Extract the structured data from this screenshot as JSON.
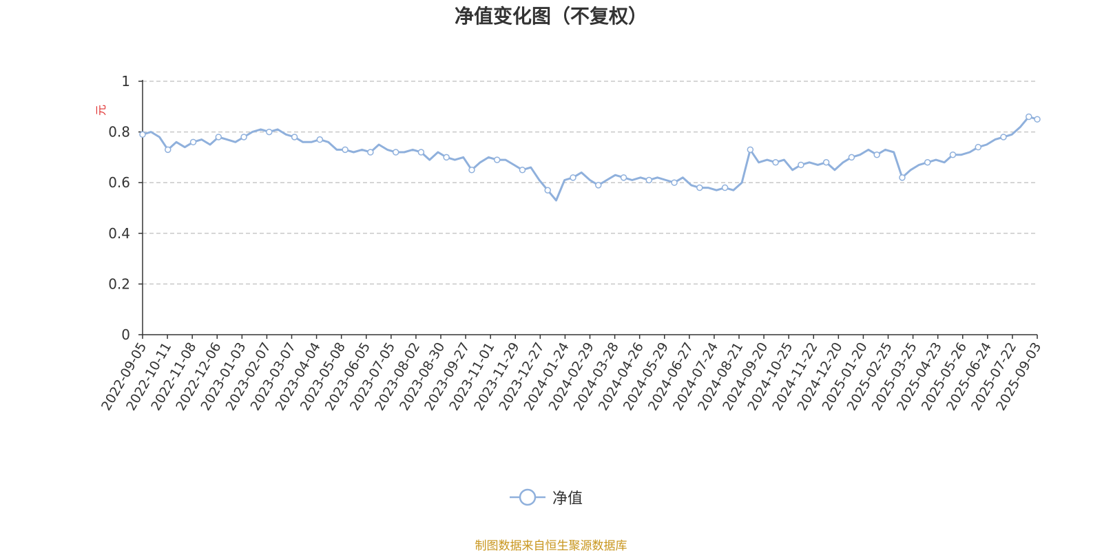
{
  "title": "净值变化图（不复权）",
  "source_note": "制图数据来自恒生聚源数据库",
  "colors": {
    "line": "#8fb0dc",
    "source": "#c8961e",
    "ylabel": "#e03030",
    "axis": "#333333",
    "grid": "#c8c8c8"
  },
  "chart_data": {
    "type": "line",
    "title": "净值变化图（不复权）",
    "ylabel": "元",
    "ylim": [
      0,
      1
    ],
    "yticks": [
      "0",
      "0.2",
      "0.4",
      "0.6",
      "0.8",
      "1"
    ],
    "grid": true,
    "legend_position": "bottom-center",
    "x_ticks": [
      "2022-09-05",
      "2022-10-11",
      "2022-11-08",
      "2022-12-06",
      "2023-01-03",
      "2023-02-07",
      "2023-03-07",
      "2023-04-04",
      "2023-05-08",
      "2023-06-05",
      "2023-07-05",
      "2023-08-02",
      "2023-08-30",
      "2023-09-27",
      "2023-11-01",
      "2023-11-29",
      "2023-12-27",
      "2024-01-24",
      "2024-02-29",
      "2024-03-28",
      "2024-04-26",
      "2024-05-29",
      "2024-06-27",
      "2024-07-24",
      "2024-08-21",
      "2024-09-20",
      "2024-10-25",
      "2024-11-22",
      "2024-12-20",
      "2025-01-20",
      "2025-02-25",
      "2025-03-25",
      "2025-04-23",
      "2025-05-26",
      "2025-06-24",
      "2025-07-22",
      "2025-09-03"
    ],
    "series": [
      {
        "name": "净值",
        "values": [
          0.79,
          0.8,
          0.78,
          0.73,
          0.76,
          0.74,
          0.76,
          0.77,
          0.75,
          0.78,
          0.77,
          0.76,
          0.78,
          0.8,
          0.81,
          0.8,
          0.81,
          0.79,
          0.78,
          0.76,
          0.76,
          0.77,
          0.76,
          0.73,
          0.73,
          0.72,
          0.73,
          0.72,
          0.75,
          0.73,
          0.72,
          0.72,
          0.73,
          0.72,
          0.69,
          0.72,
          0.7,
          0.69,
          0.7,
          0.65,
          0.68,
          0.7,
          0.69,
          0.69,
          0.67,
          0.65,
          0.66,
          0.61,
          0.57,
          0.53,
          0.61,
          0.62,
          0.64,
          0.61,
          0.59,
          0.61,
          0.63,
          0.62,
          0.61,
          0.62,
          0.61,
          0.62,
          0.61,
          0.6,
          0.62,
          0.59,
          0.58,
          0.58,
          0.57,
          0.58,
          0.57,
          0.6,
          0.73,
          0.68,
          0.69,
          0.68,
          0.69,
          0.65,
          0.67,
          0.68,
          0.67,
          0.68,
          0.65,
          0.68,
          0.7,
          0.71,
          0.73,
          0.71,
          0.73,
          0.72,
          0.62,
          0.65,
          0.67,
          0.68,
          0.69,
          0.68,
          0.71,
          0.71,
          0.72,
          0.74,
          0.75,
          0.77,
          0.78,
          0.79,
          0.82,
          0.86,
          0.85
        ]
      }
    ]
  }
}
